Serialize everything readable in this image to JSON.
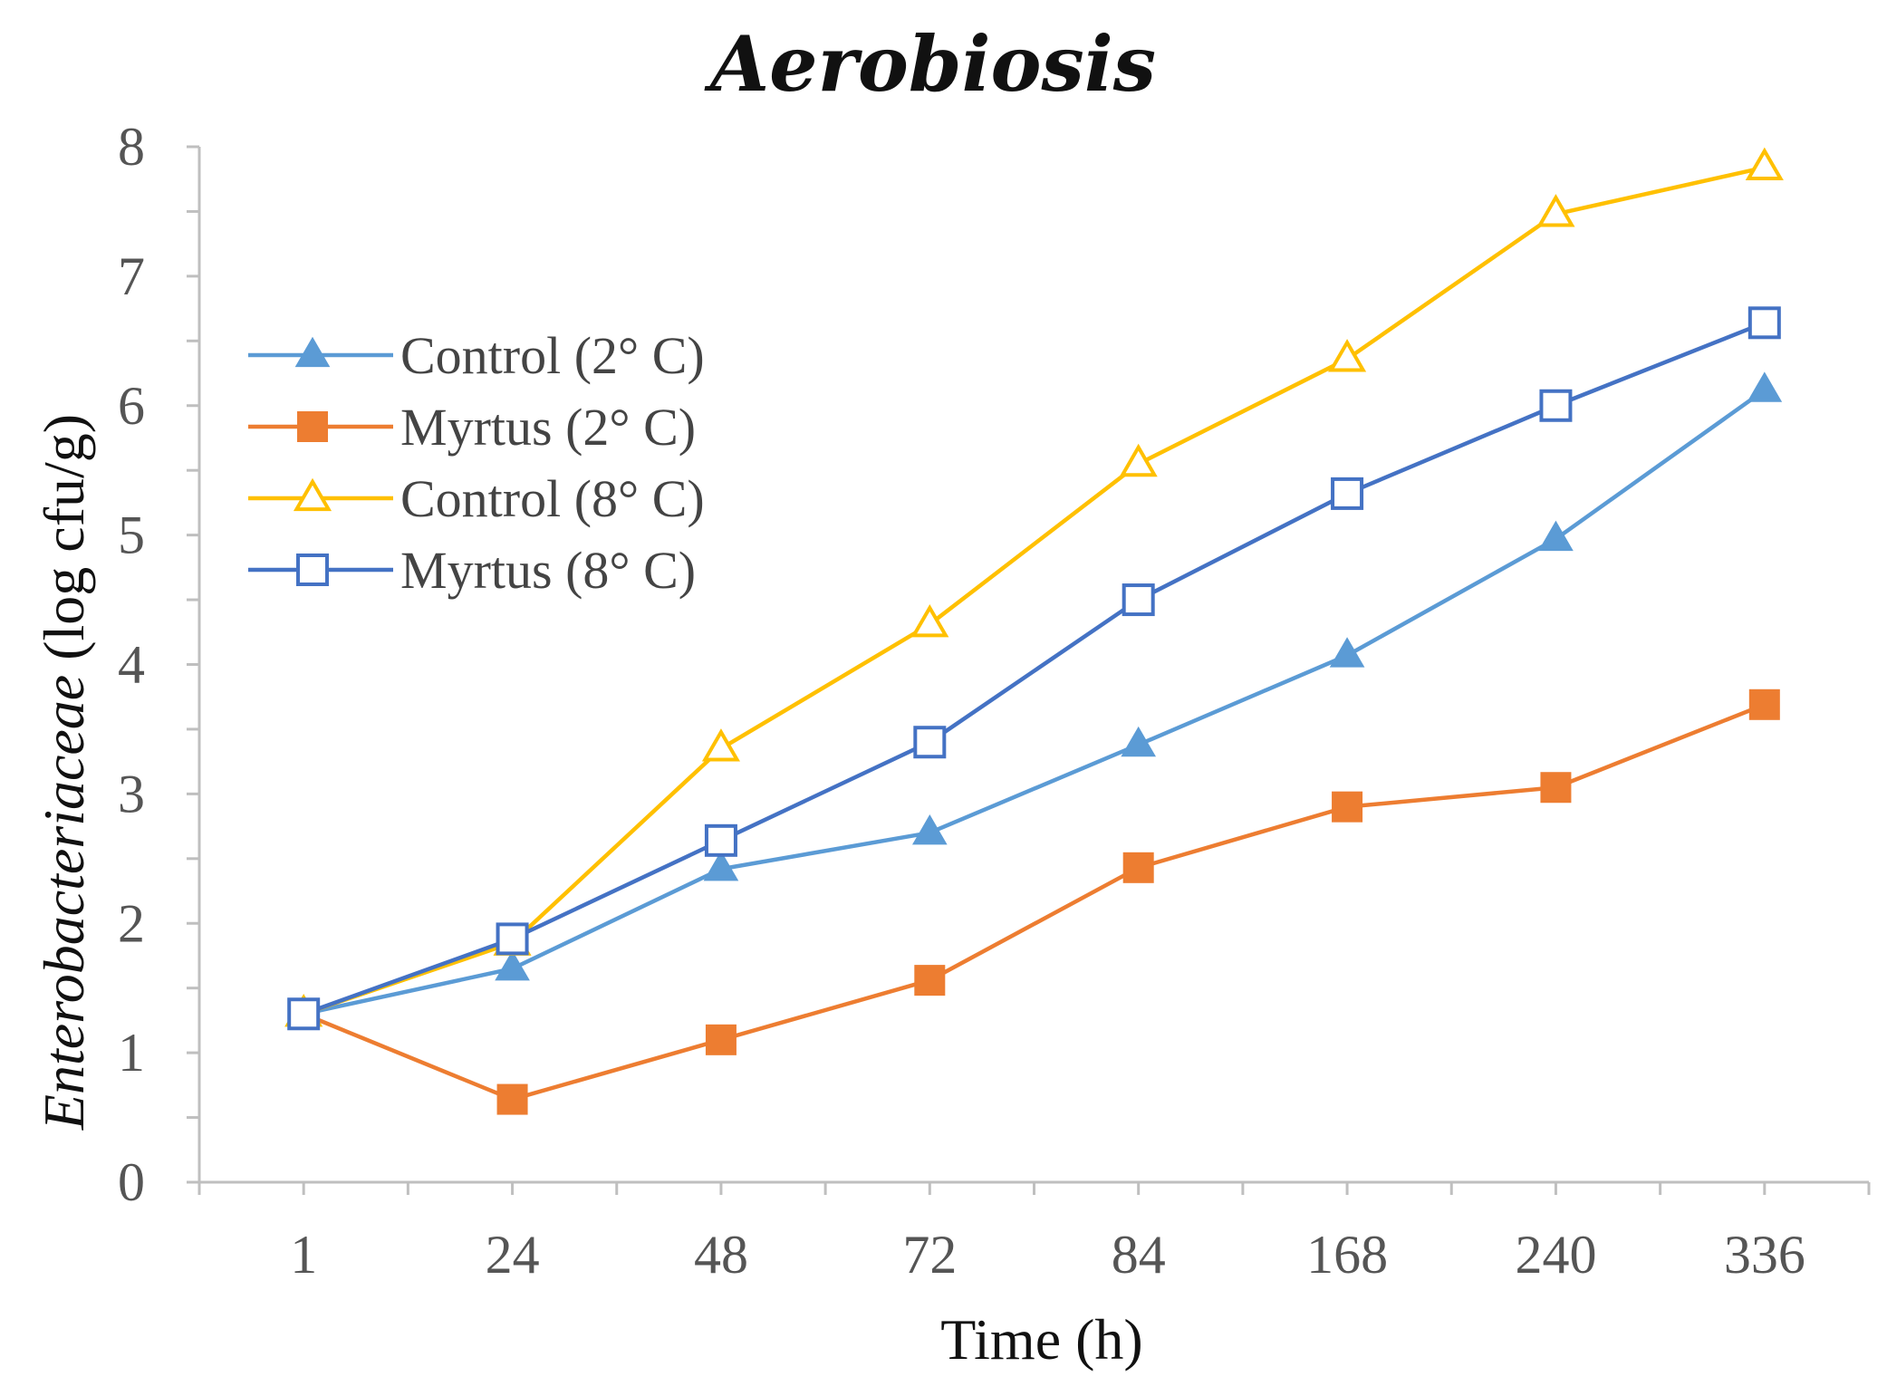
{
  "chart_data": {
    "type": "line",
    "title": "Aerobiosis",
    "xlabel": "Time  (h)",
    "ylabel_italic": "Enterobacteriaceae",
    "ylabel_unit": " (log cfu/g)",
    "categories": [
      "1",
      "24",
      "48",
      "72",
      "84",
      "168",
      "240",
      "336"
    ],
    "yticks": [
      "0",
      "1",
      "2",
      "3",
      "4",
      "5",
      "6",
      "7",
      "8"
    ],
    "ylim": [
      0,
      8
    ],
    "grid": false,
    "legend_position": "upper-left",
    "series": [
      {
        "name": "Control (2° C)",
        "marker": "triangle-filled",
        "color": "#5b9bd5",
        "values": [
          1.3,
          1.65,
          2.42,
          2.7,
          3.38,
          4.07,
          4.97,
          6.12
        ]
      },
      {
        "name": "Myrtus (2° C)",
        "marker": "square-filled",
        "color": "#ed7d31",
        "values": [
          1.3,
          0.64,
          1.1,
          1.56,
          2.43,
          2.9,
          3.05,
          3.69
        ]
      },
      {
        "name": "Control (8° C)",
        "marker": "triangle-open",
        "color": "#ffc000",
        "values": [
          1.3,
          1.85,
          3.35,
          4.31,
          5.55,
          6.36,
          7.48,
          7.84
        ]
      },
      {
        "name": "Myrtus (8° C)",
        "marker": "square-open",
        "color": "#4472c4",
        "values": [
          1.3,
          1.88,
          2.64,
          3.4,
          4.5,
          5.32,
          6.0,
          6.64
        ]
      }
    ]
  }
}
